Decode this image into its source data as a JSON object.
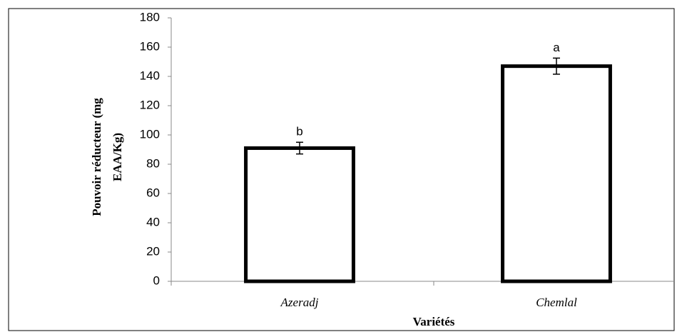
{
  "chart_data": {
    "type": "bar",
    "y_label": [
      "Pouvoir réducteur (mg",
      "EAA/Kg)"
    ],
    "x_label": "Variétés",
    "categories": [
      "Azeradj",
      "Chemlal"
    ],
    "values": [
      91,
      147
    ],
    "errors": [
      4,
      5.5
    ],
    "annotations": [
      "b",
      "a"
    ],
    "color": "#ffffff",
    "edge_color": "#000000",
    "ylim": [
      0,
      180
    ],
    "yticks": [
      0,
      20,
      40,
      60,
      80,
      100,
      120,
      140,
      160,
      180
    ],
    "grid": false
  }
}
